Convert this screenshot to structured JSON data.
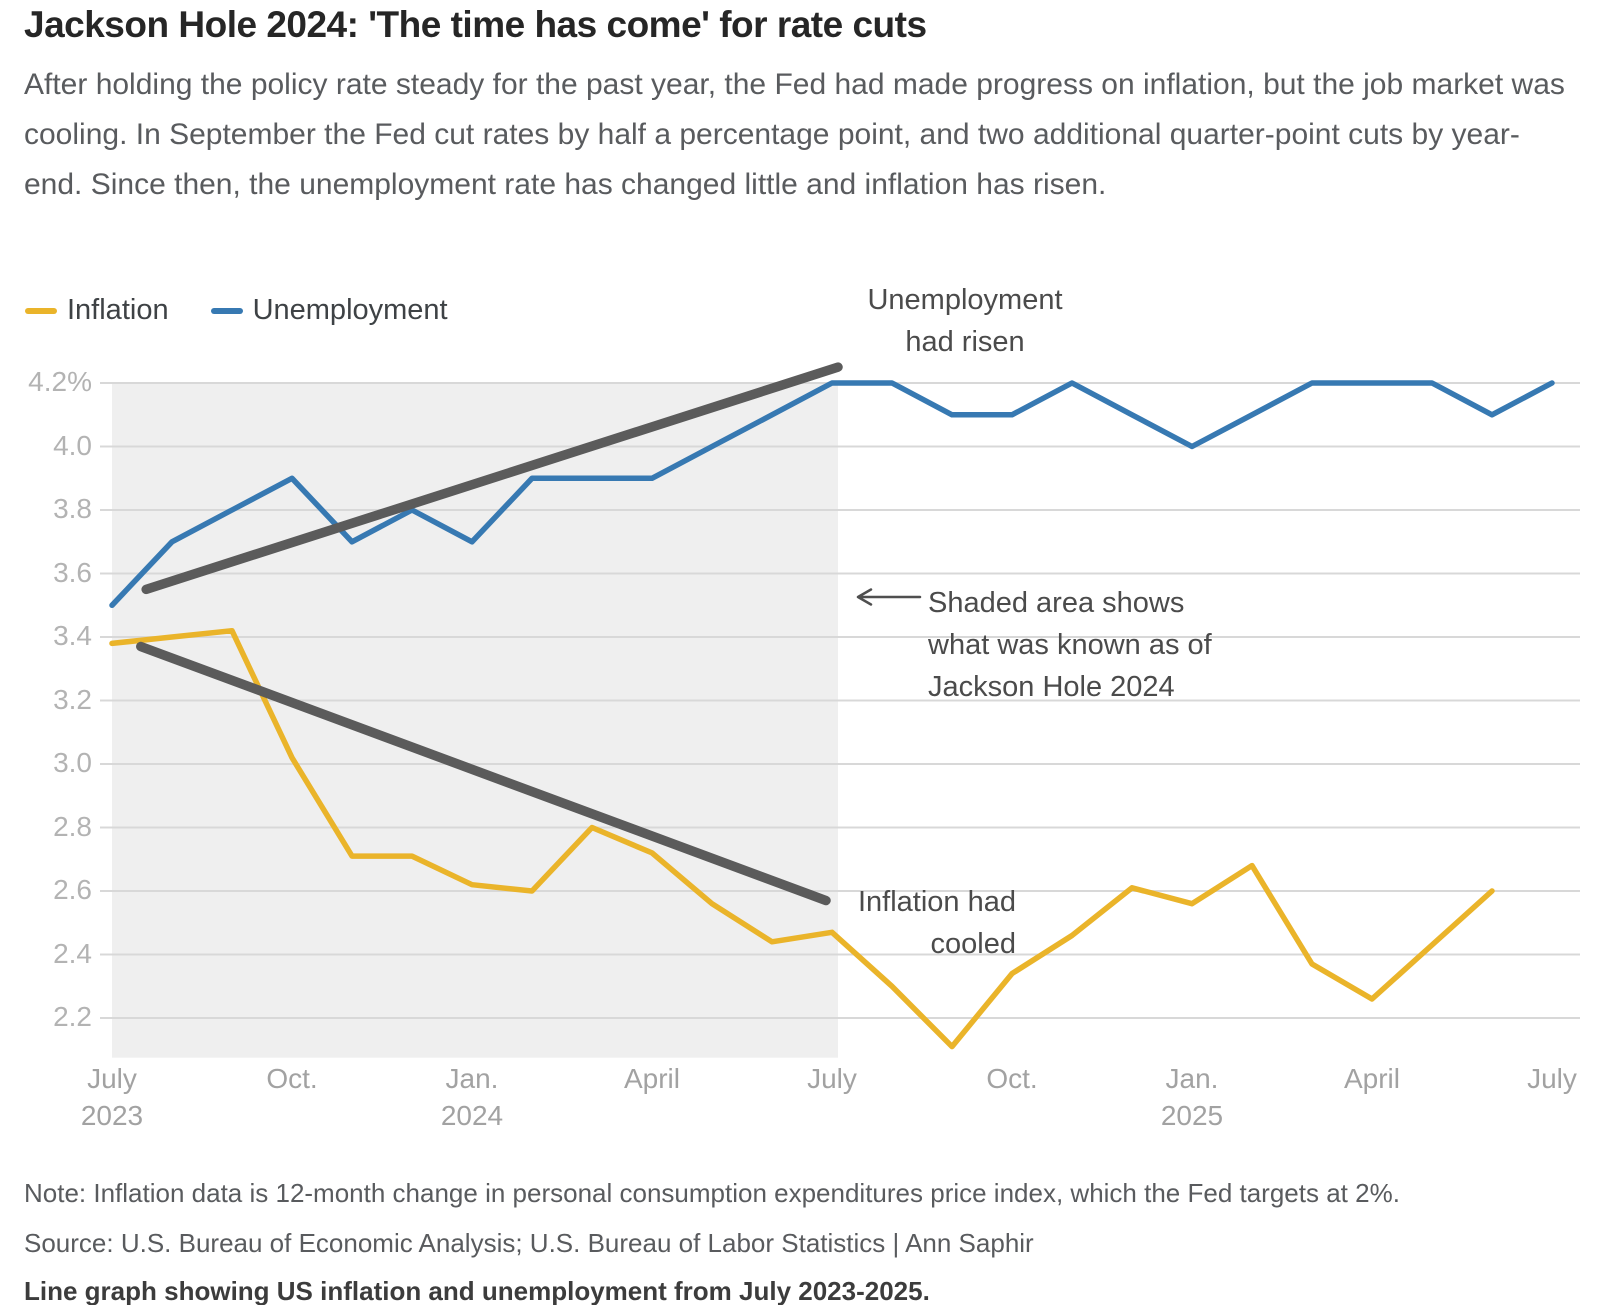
{
  "header": {
    "title": "Jackson Hole 2024: 'The time has come' for rate cuts",
    "subtitle": "After holding the policy rate steady for the past year, the Fed had made progress on inflation, but the job market was cooling. In September the Fed cut rates by half a percentage point, and two additional quarter-point cuts by year-end. Since then, the unemployment rate has changed little and inflation has risen."
  },
  "legend": {
    "items": [
      {
        "label": "Inflation",
        "color": "#EAB42A"
      },
      {
        "label": "Unemployment",
        "color": "#3779B2"
      }
    ]
  },
  "chart_data": {
    "type": "line",
    "x_months": [
      "Jul 2023",
      "Aug 2023",
      "Sep 2023",
      "Oct 2023",
      "Nov 2023",
      "Dec 2023",
      "Jan 2024",
      "Feb 2024",
      "Mar 2024",
      "Apr 2024",
      "May 2024",
      "Jun 2024",
      "Jul 2024",
      "Aug 2024",
      "Sep 2024",
      "Oct 2024",
      "Nov 2024",
      "Dec 2024",
      "Jan 2025",
      "Feb 2025",
      "Mar 2025",
      "Apr 2025",
      "May 2025",
      "Jun 2025",
      "Jul 2025"
    ],
    "series": [
      {
        "name": "Inflation",
        "unit": "%",
        "color": "#EAB42A",
        "values": [
          3.38,
          3.4,
          3.42,
          3.02,
          2.71,
          2.71,
          2.62,
          2.6,
          2.8,
          2.72,
          2.56,
          2.44,
          2.47,
          2.3,
          2.11,
          2.34,
          2.46,
          2.61,
          2.56,
          2.68,
          2.37,
          2.26,
          2.43,
          2.6
        ]
      },
      {
        "name": "Unemployment",
        "unit": "%",
        "color": "#3779B2",
        "values": [
          3.5,
          3.7,
          3.8,
          3.9,
          3.7,
          3.8,
          3.7,
          3.9,
          3.9,
          3.9,
          4.0,
          4.1,
          4.2,
          4.2,
          4.1,
          4.1,
          4.2,
          4.1,
          4.0,
          4.1,
          4.2,
          4.2,
          4.2,
          4.1,
          4.2
        ]
      }
    ],
    "ylim": [
      2.08,
      4.3
    ],
    "grid": true,
    "legend_position": "top-left",
    "yticks": [
      {
        "label": "4.2%",
        "value": 4.2
      },
      {
        "label": "4.0",
        "value": 4.0
      },
      {
        "label": "3.8",
        "value": 3.8
      },
      {
        "label": "3.6",
        "value": 3.6
      },
      {
        "label": "3.4",
        "value": 3.4
      },
      {
        "label": "3.2",
        "value": 3.2
      },
      {
        "label": "3.0",
        "value": 3.0
      },
      {
        "label": "2.8",
        "value": 2.8
      },
      {
        "label": "2.6",
        "value": 2.6
      },
      {
        "label": "2.4",
        "value": 2.4
      },
      {
        "label": "2.2",
        "value": 2.2
      }
    ],
    "xticks": [
      {
        "label": "July",
        "sublabel": "2023",
        "month": 0
      },
      {
        "label": "Oct.",
        "month": 3
      },
      {
        "label": "Jan.",
        "sublabel": "2024",
        "month": 6
      },
      {
        "label": "April",
        "month": 9
      },
      {
        "label": "July",
        "month": 12
      },
      {
        "label": "Oct.",
        "month": 15
      },
      {
        "label": "Jan.",
        "sublabel": "2025",
        "month": 18
      },
      {
        "label": "April",
        "month": 21
      },
      {
        "label": "July",
        "month": 24
      }
    ],
    "shaded_region": {
      "from_month": 0,
      "to_month": 12.1,
      "top_value": 4.2,
      "bottom_value": 2.075,
      "color": "#EFEFEF"
    },
    "trend_arrows": [
      {
        "name": "unemployment-trend-line",
        "x1_month": 0.57,
        "y1": 3.55,
        "x2_month": 12.1,
        "y2": 4.25,
        "color": "#5B5B5B"
      },
      {
        "name": "inflation-trend-line",
        "x1_month": 0.48,
        "y1": 3.37,
        "x2_month": 11.9,
        "y2": 2.57,
        "color": "#5B5B5B"
      }
    ],
    "annotations": [
      {
        "lines": [
          "Unemployment",
          "had risen"
        ]
      },
      {
        "lines": [
          "Shaded area shows",
          "what was known as of",
          "Jackson Hole 2024"
        ]
      },
      {
        "lines": [
          "Inflation had",
          "cooled"
        ]
      }
    ]
  },
  "footer": {
    "note": "Note: Inflation data is 12-month change in personal consumption expenditures price index, which the Fed targets at 2%.",
    "source": "Source: U.S. Bureau of Economic Analysis; U.S. Bureau of Labor Statistics | Ann Saphir",
    "caption": "Line graph showing US inflation and unemployment from July 2023-2025."
  }
}
